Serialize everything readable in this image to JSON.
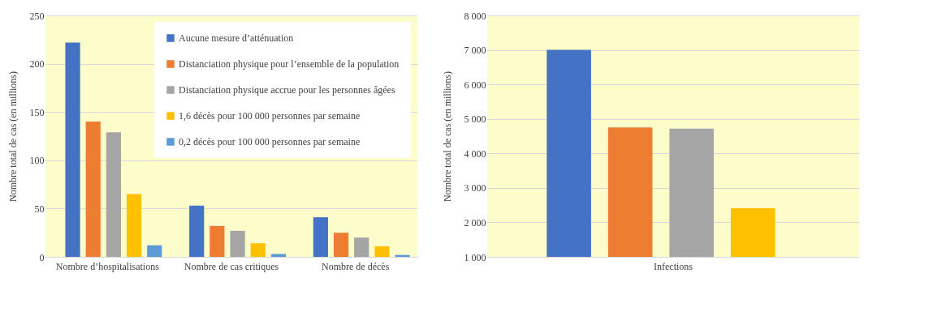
{
  "chart_data": [
    {
      "type": "bar",
      "ylabel": "Nombre total de cas (en millions)",
      "categories": [
        "Nombre d’hospitalisations",
        "Nombre de cas critiques",
        "Nombre de décès"
      ],
      "series": [
        {
          "name": "Aucune mesure d’atténuation",
          "color": "#4472c4",
          "values": [
            222,
            53,
            41
          ]
        },
        {
          "name": "Distanciation physique pour l’ensemble de la population",
          "color": "#ed7d31",
          "values": [
            140,
            32,
            25
          ]
        },
        {
          "name": "Distanciation physique accrue pour les personnes âgées",
          "color": "#a5a5a5",
          "values": [
            129,
            27,
            20
          ]
        },
        {
          "name": "1,6 décès pour 100 000 personnes par semaine",
          "color": "#ffc000",
          "values": [
            65,
            14,
            11
          ]
        },
        {
          "name": "0,2 décès pour 100 000 personnes par semaine",
          "color": "#5b9bd5",
          "values": [
            12,
            3,
            2
          ]
        }
      ],
      "ylim": [
        0,
        250
      ],
      "yticks": [
        0,
        50,
        100,
        150,
        200,
        250
      ],
      "grid": "y",
      "legend": "top right"
    },
    {
      "type": "bar",
      "ylabel": "Nombre total de cas (en millions)",
      "categories": [
        "Infections"
      ],
      "series": [
        {
          "color": "#4472c4",
          "values": [
            7000
          ]
        },
        {
          "color": "#ed7d31",
          "values": [
            4750
          ]
        },
        {
          "color": "#a5a5a5",
          "values": [
            4720
          ]
        },
        {
          "color": "#ffc000",
          "values": [
            2410
          ]
        },
        {
          "color": "#5b9bd5",
          "values": [
            null
          ]
        }
      ],
      "ylim": [
        1000,
        8000
      ],
      "yticks": [
        {
          "value": 1000,
          "label": "1 000"
        },
        {
          "value": 2000,
          "label": "2 000"
        },
        {
          "value": 3000,
          "label": "3 000"
        },
        {
          "value": 4000,
          "label": "4 000"
        },
        {
          "value": 5000,
          "label": "5 000"
        },
        {
          "value": 6000,
          "label": "6 000"
        },
        {
          "value": 7000,
          "label": "7 000"
        },
        {
          "value": 8000,
          "label": "8 000"
        }
      ],
      "grid": "y",
      "legend": false
    }
  ]
}
